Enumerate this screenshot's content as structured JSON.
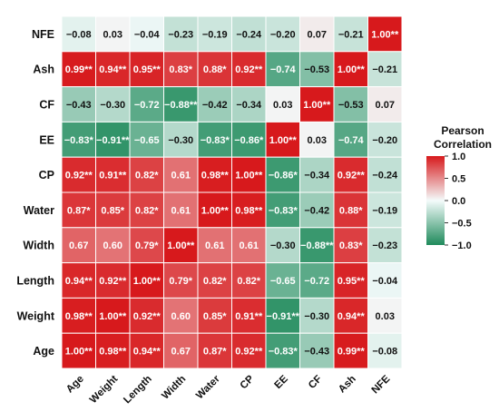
{
  "chart_data": {
    "type": "heatmap",
    "rows": [
      "NFE",
      "Ash",
      "CF",
      "EE",
      "CP",
      "Water",
      "Width",
      "Length",
      "Weight",
      "Age"
    ],
    "columns": [
      "Age",
      "Weight",
      "Length",
      "Width",
      "Water",
      "CP",
      "EE",
      "CF",
      "Ash",
      "NFE"
    ],
    "values": [
      [
        -0.08,
        0.03,
        -0.04,
        -0.23,
        -0.19,
        -0.24,
        -0.2,
        0.07,
        -0.21,
        1.0
      ],
      [
        0.99,
        0.94,
        0.95,
        0.83,
        0.88,
        0.92,
        -0.74,
        -0.53,
        1.0,
        -0.21
      ],
      [
        -0.43,
        -0.3,
        -0.72,
        -0.88,
        -0.42,
        -0.34,
        0.03,
        1.0,
        -0.53,
        0.07
      ],
      [
        -0.83,
        -0.91,
        -0.65,
        -0.3,
        -0.83,
        -0.86,
        1.0,
        0.03,
        -0.74,
        -0.2
      ],
      [
        0.92,
        0.91,
        0.82,
        0.61,
        0.98,
        1.0,
        -0.86,
        -0.34,
        0.92,
        -0.24
      ],
      [
        0.87,
        0.85,
        0.82,
        0.61,
        1.0,
        0.98,
        -0.83,
        -0.42,
        0.88,
        -0.19
      ],
      [
        0.67,
        0.6,
        0.79,
        1.0,
        0.61,
        0.61,
        -0.3,
        -0.88,
        0.83,
        -0.23
      ],
      [
        0.94,
        0.92,
        1.0,
        0.79,
        0.82,
        0.82,
        -0.65,
        -0.72,
        0.95,
        -0.04
      ],
      [
        0.98,
        1.0,
        0.92,
        0.6,
        0.85,
        0.91,
        -0.91,
        -0.3,
        0.94,
        0.03
      ],
      [
        1.0,
        0.98,
        0.94,
        0.67,
        0.87,
        0.92,
        -0.83,
        -0.43,
        0.99,
        -0.08
      ]
    ],
    "labels": [
      [
        "−0.08",
        "0.03",
        "−0.04",
        "−0.23",
        "−0.19",
        "−0.24",
        "−0.20",
        "0.07",
        "−0.21",
        "1.00**"
      ],
      [
        "0.99**",
        "0.94**",
        "0.95**",
        "0.83*",
        "0.88*",
        "0.92**",
        "−0.74",
        "−0.53",
        "1.00**",
        "−0.21"
      ],
      [
        "−0.43",
        "−0.30",
        "−0.72",
        "−0.88**",
        "−0.42",
        "−0.34",
        "0.03",
        "1.00**",
        "−0.53",
        "0.07"
      ],
      [
        "−0.83*",
        "−0.91**",
        "−0.65",
        "−0.30",
        "−0.83*",
        "−0.86*",
        "1.00**",
        "0.03",
        "−0.74",
        "−0.20"
      ],
      [
        "0.92**",
        "0.91**",
        "0.82*",
        "0.61",
        "0.98**",
        "1.00**",
        "−0.86*",
        "−0.34",
        "0.92**",
        "−0.24"
      ],
      [
        "0.87*",
        "0.85*",
        "0.82*",
        "0.61",
        "1.00**",
        "0.98**",
        "−0.83*",
        "−0.42",
        "0.88*",
        "−0.19"
      ],
      [
        "0.67",
        "0.60",
        "0.79*",
        "1.00**",
        "0.61",
        "0.61",
        "−0.30",
        "−0.88**",
        "0.83*",
        "−0.23"
      ],
      [
        "0.94**",
        "0.92**",
        "1.00**",
        "0.79*",
        "0.82*",
        "0.82*",
        "−0.65",
        "−0.72",
        "0.95**",
        "−0.04"
      ],
      [
        "0.98**",
        "1.00**",
        "0.92**",
        "0.60",
        "0.85*",
        "0.91**",
        "−0.91**",
        "−0.30",
        "0.94**",
        "0.03"
      ],
      [
        "1.00**",
        "0.98**",
        "0.94**",
        "0.67",
        "0.87*",
        "0.92**",
        "−0.83*",
        "−0.43",
        "0.99**",
        "−0.08"
      ]
    ],
    "legend": {
      "title_lines": [
        "Pearson",
        "Correlation"
      ],
      "ticks": [
        "1.0",
        "0.5",
        "0.0",
        "−0.5",
        "−1.0"
      ],
      "tick_values": [
        1.0,
        0.5,
        0.0,
        -0.5,
        -1.0
      ],
      "range": [
        -1.0,
        1.0
      ],
      "placement": "right"
    },
    "colors": {
      "positive": "#d7191c",
      "neutral": "#f4fbfb",
      "negative": "#1f8a5b"
    }
  }
}
